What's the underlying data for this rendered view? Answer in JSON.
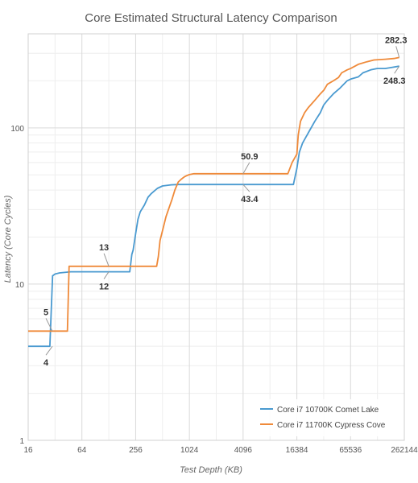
{
  "chart_data": {
    "type": "line",
    "title": "Core Estimated Structural Latency Comparison",
    "xlabel": "Test Depth (KB)",
    "ylabel": "Latency (Core Cycles)",
    "x_scale": "log2",
    "y_scale": "log10",
    "xlim": [
      16,
      262144
    ],
    "ylim": [
      1,
      400
    ],
    "x_ticks": [
      16,
      64,
      256,
      1024,
      4096,
      16384,
      65536,
      262144
    ],
    "y_ticks": [
      1,
      10,
      100
    ],
    "grid": true,
    "legend_position": "bottom-right",
    "series": [
      {
        "name": "Core i7 10700K Comet Lake",
        "color": "#4a9ad0",
        "points": [
          [
            16,
            4
          ],
          [
            24,
            4
          ],
          [
            28,
            4
          ],
          [
            30,
            11.3
          ],
          [
            32,
            11.6
          ],
          [
            36,
            11.8
          ],
          [
            48,
            12
          ],
          [
            64,
            12
          ],
          [
            128,
            12
          ],
          [
            220,
            12
          ],
          [
            232,
            15.5
          ],
          [
            240,
            16.5
          ],
          [
            256,
            21
          ],
          [
            272,
            26
          ],
          [
            288,
            29
          ],
          [
            320,
            32
          ],
          [
            352,
            36
          ],
          [
            384,
            38
          ],
          [
            416,
            39.5
          ],
          [
            448,
            41
          ],
          [
            512,
            42.5
          ],
          [
            640,
            43.2
          ],
          [
            768,
            43.4
          ],
          [
            1024,
            43.4
          ],
          [
            2048,
            43.4
          ],
          [
            4096,
            43.4
          ],
          [
            8192,
            43.4
          ],
          [
            15000,
            43.4
          ],
          [
            16384,
            55
          ],
          [
            17500,
            70
          ],
          [
            19000,
            80
          ],
          [
            22000,
            93
          ],
          [
            26000,
            110
          ],
          [
            30000,
            125
          ],
          [
            32768,
            140
          ],
          [
            36000,
            150
          ],
          [
            42000,
            165
          ],
          [
            50000,
            180
          ],
          [
            60000,
            200
          ],
          [
            65536,
            205
          ],
          [
            80000,
            212
          ],
          [
            90000,
            225
          ],
          [
            110000,
            235
          ],
          [
            130000,
            240
          ],
          [
            160000,
            240
          ],
          [
            190000,
            244
          ],
          [
            230000,
            248.3
          ]
        ]
      },
      {
        "name": "Core i7 11700K Cypress Cove",
        "color": "#ef8a3a",
        "points": [
          [
            16,
            5
          ],
          [
            24,
            5
          ],
          [
            32,
            5
          ],
          [
            44,
            5
          ],
          [
            46,
            13
          ],
          [
            64,
            13
          ],
          [
            128,
            13
          ],
          [
            256,
            13
          ],
          [
            440,
            13
          ],
          [
            460,
            15
          ],
          [
            480,
            19
          ],
          [
            512,
            22
          ],
          [
            560,
            27
          ],
          [
            608,
            31
          ],
          [
            656,
            35
          ],
          [
            704,
            40
          ],
          [
            768,
            45
          ],
          [
            832,
            47
          ],
          [
            896,
            48.5
          ],
          [
            960,
            49.5
          ],
          [
            1024,
            50.2
          ],
          [
            1152,
            50.9
          ],
          [
            2048,
            50.9
          ],
          [
            4096,
            50.9
          ],
          [
            8192,
            50.9
          ],
          [
            13000,
            50.9
          ],
          [
            14500,
            60
          ],
          [
            16384,
            68
          ],
          [
            17000,
            90
          ],
          [
            18000,
            110
          ],
          [
            20000,
            125
          ],
          [
            22000,
            135
          ],
          [
            26000,
            150
          ],
          [
            30000,
            165
          ],
          [
            33000,
            175
          ],
          [
            36000,
            190
          ],
          [
            42000,
            200
          ],
          [
            48000,
            210
          ],
          [
            52000,
            225
          ],
          [
            60000,
            235
          ],
          [
            65536,
            240
          ],
          [
            80000,
            255
          ],
          [
            100000,
            265
          ],
          [
            120000,
            272
          ],
          [
            160000,
            275
          ],
          [
            200000,
            278
          ],
          [
            230000,
            282.3
          ]
        ]
      }
    ],
    "annotations": [
      {
        "text": "5",
        "x": 16,
        "y": 5,
        "position": "above",
        "series": 1
      },
      {
        "text": "4",
        "x": 16,
        "y": 4,
        "position": "below",
        "series": 0
      },
      {
        "text": "13",
        "x": 128,
        "y": 13,
        "position": "above",
        "series": 1
      },
      {
        "text": "12",
        "x": 128,
        "y": 12,
        "position": "below",
        "series": 0
      },
      {
        "text": "50.9",
        "x": 4096,
        "y": 50.9,
        "position": "above",
        "series": 1
      },
      {
        "text": "43.4",
        "x": 4096,
        "y": 43.4,
        "position": "below",
        "series": 0
      },
      {
        "text": "282.3",
        "x": 230000,
        "y": 282.3,
        "position": "above",
        "series": 1
      },
      {
        "text": "248.3",
        "x": 230000,
        "y": 248.3,
        "position": "below",
        "series": 0
      }
    ]
  }
}
